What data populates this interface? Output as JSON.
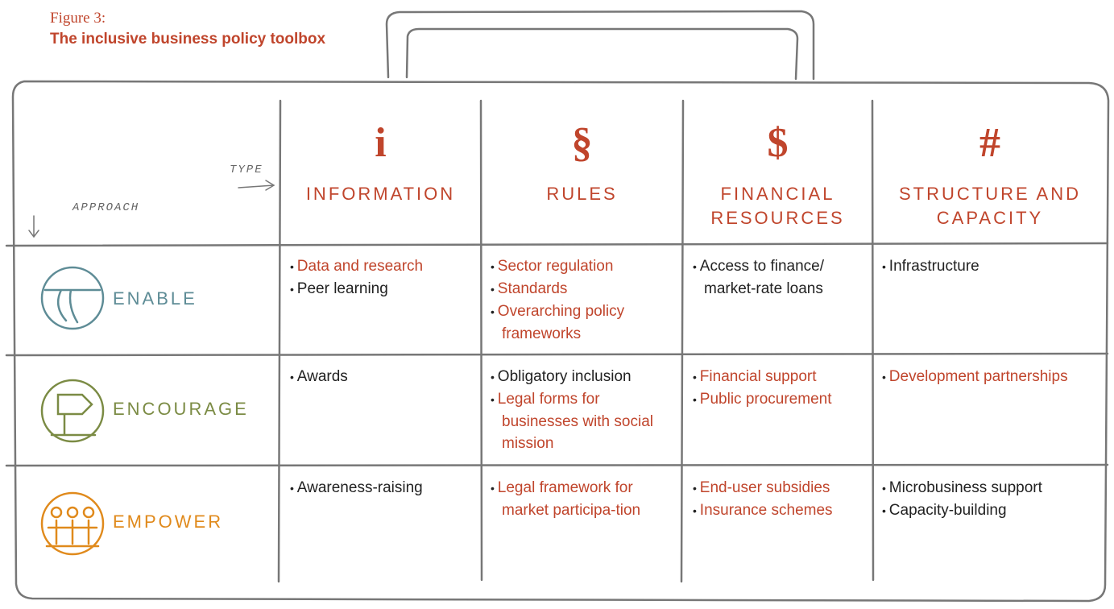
{
  "figure": {
    "label": "Figure 3:",
    "title": "The inclusive business policy toolbox"
  },
  "axes": {
    "type": "TYPE",
    "approach": "APPROACH"
  },
  "highlight_color": "#c0452c",
  "columns": [
    {
      "icon": "i",
      "label": "INFORMATION"
    },
    {
      "icon": "§",
      "label": "RULES"
    },
    {
      "icon": "$",
      "label": "FINANCIAL RESOURCES"
    },
    {
      "icon": "#",
      "label": "STRUCTURE AND CAPACITY"
    }
  ],
  "rows": [
    {
      "label": "ENABLE",
      "color": "#5e8c96",
      "cells": [
        [
          {
            "text": "Data and research",
            "highlight": true
          },
          {
            "text": "Peer learning",
            "highlight": false
          }
        ],
        [
          {
            "text": "Sector regulation",
            "highlight": true
          },
          {
            "text": "Standards",
            "highlight": true
          },
          {
            "text": "Overarching policy frameworks",
            "highlight": true
          }
        ],
        [
          {
            "text": "Access to finance/ market-rate loans",
            "highlight": false
          }
        ],
        [
          {
            "text": "Infrastructure",
            "highlight": false
          }
        ]
      ]
    },
    {
      "label": "ENCOURAGE",
      "color": "#7b8b44",
      "cells": [
        [
          {
            "text": "Awards",
            "highlight": false
          }
        ],
        [
          {
            "text": "Obligatory inclusion",
            "highlight": false
          },
          {
            "text": "Legal forms for businesses with social mission",
            "highlight": true
          }
        ],
        [
          {
            "text": "Financial support",
            "highlight": true
          },
          {
            "text": "Public procurement",
            "highlight": true
          }
        ],
        [
          {
            "text": "Development partnerships",
            "highlight": true
          }
        ]
      ]
    },
    {
      "label": "EMPOWER",
      "color": "#e08a1c",
      "cells": [
        [
          {
            "text": "Awareness-raising",
            "highlight": false
          }
        ],
        [
          {
            "text": "Legal framework for market participa-tion",
            "highlight": true
          }
        ],
        [
          {
            "text": "End-user subsidies",
            "highlight": true
          },
          {
            "text": "Insurance schemes",
            "highlight": true
          }
        ],
        [
          {
            "text": "Microbusiness support",
            "highlight": false
          },
          {
            "text": "Capacity-building",
            "highlight": false
          }
        ]
      ]
    }
  ]
}
